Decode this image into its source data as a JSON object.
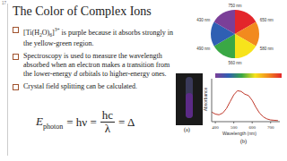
{
  "slide_number": "17",
  "title": "The Color of Complex Ions",
  "bullets": [
    {
      "segments": [
        {
          "text": "[Ti(H",
          "style": "normal"
        },
        {
          "text": "2",
          "style": "sub"
        },
        {
          "text": "O)",
          "style": "normal"
        },
        {
          "text": "6",
          "style": "sub"
        },
        {
          "text": "]",
          "style": "normal"
        },
        {
          "text": "3+",
          "style": "sup"
        },
        {
          "text": " is purple because it absorbs strongly in the yellow-green region.",
          "style": "normal"
        }
      ]
    },
    {
      "segments": [
        {
          "text": "Spectroscopy is used to measure the wavelength absorbed when an electron makes a transition from the lower-energy ",
          "style": "normal"
        },
        {
          "text": "d",
          "style": "italic"
        },
        {
          "text": " orbitals to higher-energy ones.",
          "style": "normal"
        }
      ]
    },
    {
      "segments": [
        {
          "text": "Crystal field splitting can be calculated.",
          "style": "normal"
        }
      ]
    }
  ],
  "equation": {
    "lhs": "E",
    "lhs_sub": "photon",
    "middle": "= hν =",
    "numerator": "hc",
    "denominator": "λ",
    "rhs": "= Δ"
  },
  "color_wheel": {
    "colors": [
      "#e3262b",
      "#f28a1e",
      "#f7e31b",
      "#3aa845",
      "#2f5fb3",
      "#7b3f98"
    ],
    "labels": [
      "750 nm",
      "650 nm",
      "580 nm",
      "560 nm",
      "490 nm",
      "430 nm"
    ]
  },
  "photo": {
    "label": "(a)"
  },
  "chart_data": {
    "type": "line",
    "x": [
      380,
      400,
      420,
      440,
      460,
      480,
      500,
      520,
      540,
      560,
      580,
      600,
      620,
      640,
      660,
      680,
      700,
      720,
      740
    ],
    "values": [
      0.28,
      0.22,
      0.2,
      0.25,
      0.38,
      0.58,
      0.78,
      0.9,
      0.88,
      0.8,
      0.76,
      0.62,
      0.42,
      0.25,
      0.14,
      0.08,
      0.05,
      0.04,
      0.03
    ],
    "color": "#c0392b",
    "xlim": [
      380,
      750
    ],
    "xticks": [
      400,
      500,
      600,
      700
    ],
    "ylim": [
      0,
      1.25
    ],
    "x_label": "Wavelength (nm)",
    "y_label": "Absorbance",
    "tick_labels": "x",
    "panel_label": "(b)"
  }
}
